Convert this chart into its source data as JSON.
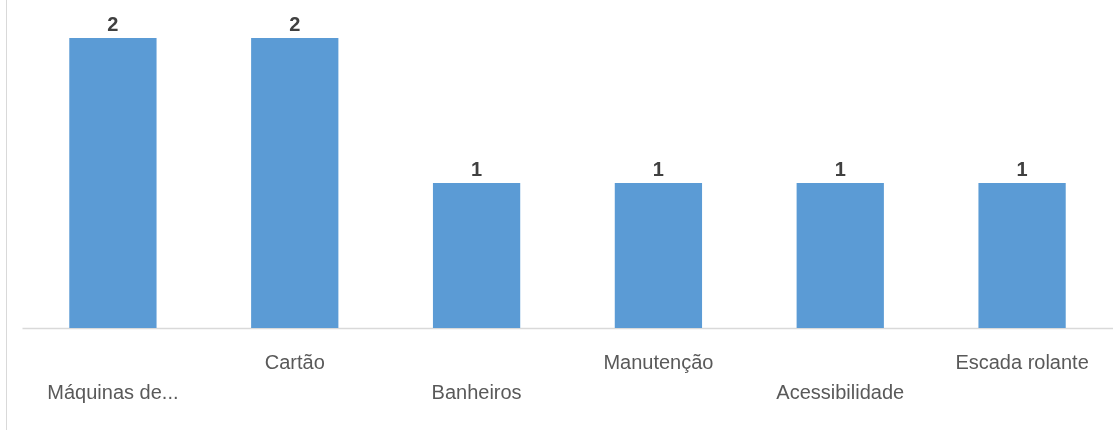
{
  "chart_data": {
    "type": "bar",
    "categories": [
      "Máquinas de...",
      "Cartão",
      "Banheiros",
      "Manutenção",
      "Acessibilidade",
      "Escada rolante"
    ],
    "values": [
      2,
      2,
      1,
      1,
      1,
      1
    ],
    "color": "#5b9bd5",
    "data_labels": true
  }
}
